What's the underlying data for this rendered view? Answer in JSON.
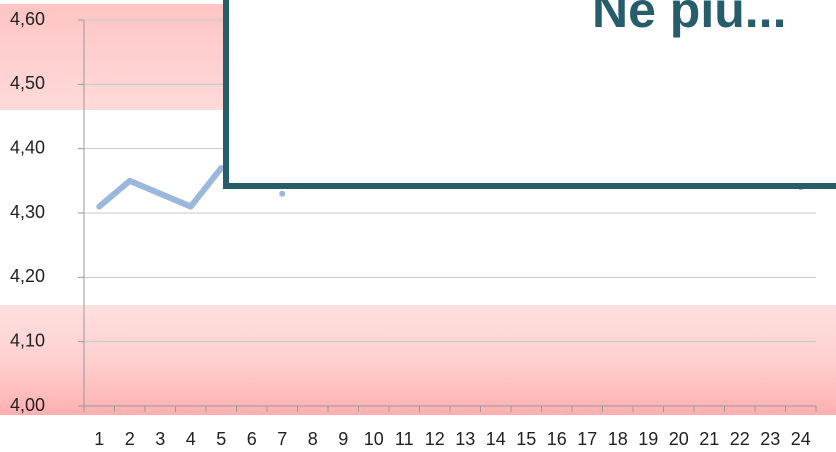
{
  "chart_data": {
    "type": "line",
    "categories": [
      "1",
      "2",
      "3",
      "4",
      "5",
      "6",
      "7",
      "8",
      "9",
      "10",
      "11",
      "12",
      "13",
      "14",
      "15",
      "16",
      "17",
      "18",
      "19",
      "20",
      "21",
      "22",
      "23",
      "24"
    ],
    "values": [
      4.31,
      4.35,
      4.33,
      4.31,
      4.37,
      null,
      4.33,
      null,
      null,
      null,
      null,
      null,
      null,
      null,
      null,
      null,
      null,
      null,
      null,
      null,
      null,
      null,
      null,
      4.34
    ],
    "color": "#9bb7de",
    "ylim": [
      4.0,
      4.6
    ],
    "yticks": [
      {
        "value": 4.0,
        "label": "4,00"
      },
      {
        "value": 4.1,
        "label": "4,10"
      },
      {
        "value": 4.2,
        "label": "4,20"
      },
      {
        "value": 4.3,
        "label": "4,30"
      },
      {
        "value": 4.4,
        "label": "4,40"
      },
      {
        "value": 4.5,
        "label": "4,50"
      },
      {
        "value": 4.6,
        "label": "4,60"
      }
    ],
    "grid": true
  },
  "overlay_title": "Ne più..."
}
